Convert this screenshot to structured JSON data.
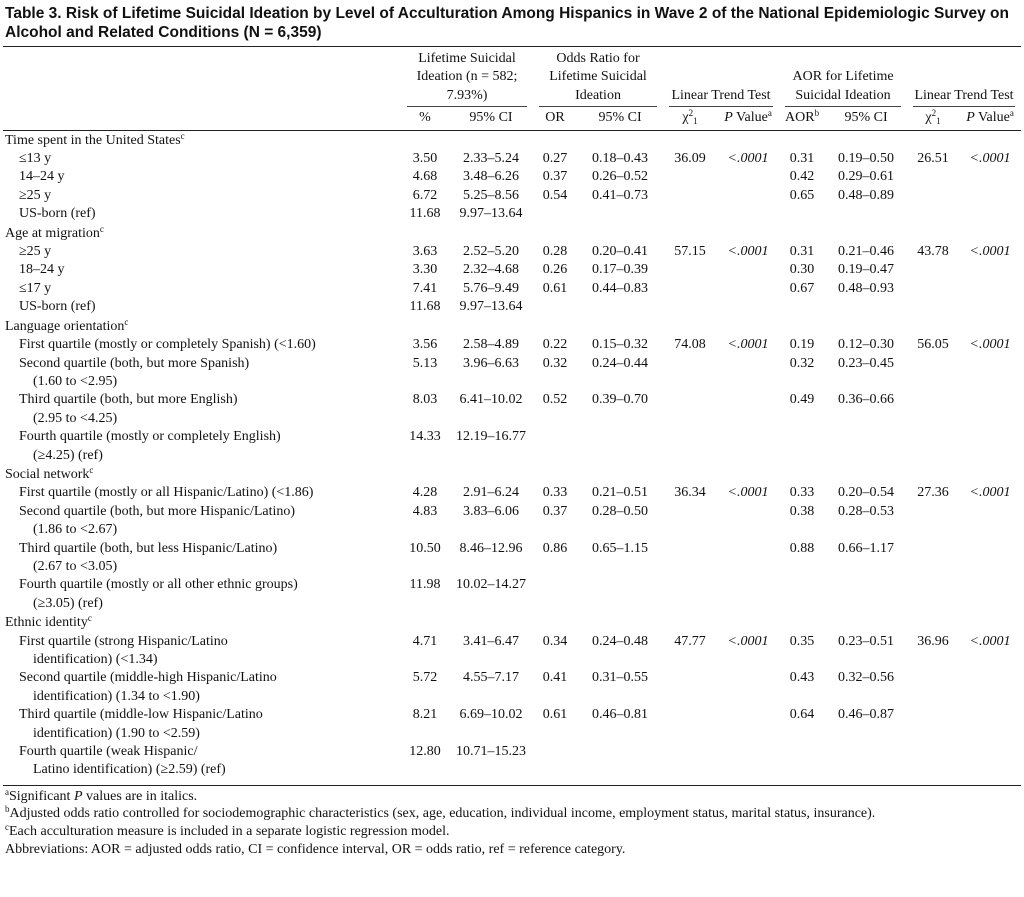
{
  "title": "Table 3. Risk of Lifetime Suicidal Ideation by Level of Acculturation Among Hispanics in Wave 2 of the National Epidemiologic Survey on Alcohol and Related Conditions (N = 6,359)",
  "header": {
    "groups": [
      "Lifetime Suicidal Ideation (n = 582; 7.93%)",
      "Odds Ratio for Lifetime Suicidal Ideation",
      "Linear Trend Test",
      "AOR for Lifetime Suicidal Ideation",
      "Linear Trend Test"
    ],
    "columns": [
      "%",
      "95% CI",
      "OR",
      "95% CI",
      {
        "text": "χ",
        "sup": "2",
        "sub": "1"
      },
      {
        "italic": "P",
        "after": " Value",
        "sup": "a"
      },
      {
        "text": "AOR",
        "sup": "b"
      },
      "95% CI",
      {
        "text": "χ",
        "sup": "2",
        "sub": "1"
      },
      {
        "italic": "P",
        "after": " Value",
        "sup": "a"
      }
    ]
  },
  "sections": [
    {
      "label": {
        "text": "Time spent in the United States",
        "sup": "c"
      },
      "rows": [
        {
          "label": [
            "≤13 y"
          ],
          "cells": [
            "3.50",
            "2.33–5.24",
            "0.27",
            "0.18–0.43",
            "36.09",
            "<.0001",
            "0.31",
            "0.19–0.50",
            "26.51",
            "<.0001"
          ]
        },
        {
          "label": [
            "14–24 y"
          ],
          "cells": [
            "4.68",
            "3.48–6.26",
            "0.37",
            "0.26–0.52",
            null,
            null,
            "0.42",
            "0.29–0.61",
            null,
            null
          ]
        },
        {
          "label": [
            "≥25 y"
          ],
          "cells": [
            "6.72",
            "5.25–8.56",
            "0.54",
            "0.41–0.73",
            null,
            null,
            "0.65",
            "0.48–0.89",
            null,
            null
          ]
        },
        {
          "label": [
            "US-born (ref)"
          ],
          "cells": [
            "11.68",
            "9.97–13.64",
            null,
            null,
            null,
            null,
            null,
            null,
            null,
            null
          ]
        }
      ]
    },
    {
      "label": {
        "text": "Age at migration",
        "sup": "c"
      },
      "rows": [
        {
          "label": [
            "≥25 y"
          ],
          "cells": [
            "3.63",
            "2.52–5.20",
            "0.28",
            "0.20–0.41",
            "57.15",
            "<.0001",
            "0.31",
            "0.21–0.46",
            "43.78",
            "<.0001"
          ]
        },
        {
          "label": [
            "18–24 y"
          ],
          "cells": [
            "3.30",
            "2.32–4.68",
            "0.26",
            "0.17–0.39",
            null,
            null,
            "0.30",
            "0.19–0.47",
            null,
            null
          ]
        },
        {
          "label": [
            "≤17 y"
          ],
          "cells": [
            "7.41",
            "5.76–9.49",
            "0.61",
            "0.44–0.83",
            null,
            null,
            "0.67",
            "0.48–0.93",
            null,
            null
          ]
        },
        {
          "label": [
            "US-born (ref)"
          ],
          "cells": [
            "11.68",
            "9.97–13.64",
            null,
            null,
            null,
            null,
            null,
            null,
            null,
            null
          ]
        }
      ]
    },
    {
      "label": {
        "text": "Language orientation",
        "sup": "c"
      },
      "rows": [
        {
          "label": [
            "First quartile (mostly or completely Spanish) (<1.60)"
          ],
          "cells": [
            "3.56",
            "2.58–4.89",
            "0.22",
            "0.15–0.32",
            "74.08",
            "<.0001",
            "0.19",
            "0.12–0.30",
            "56.05",
            "<.0001"
          ]
        },
        {
          "label": [
            "Second quartile (both, but more Spanish)",
            "(1.60 to <2.95)"
          ],
          "cells": [
            "5.13",
            "3.96–6.63",
            "0.32",
            "0.24–0.44",
            null,
            null,
            "0.32",
            "0.23–0.45",
            null,
            null
          ]
        },
        {
          "label": [
            "Third quartile (both, but more English)",
            "(2.95 to <4.25)"
          ],
          "cells": [
            "8.03",
            "6.41–10.02",
            "0.52",
            "0.39–0.70",
            null,
            null,
            "0.49",
            "0.36–0.66",
            null,
            null
          ]
        },
        {
          "label": [
            "Fourth quartile (mostly or completely English)",
            "(≥4.25) (ref)"
          ],
          "cells": [
            "14.33",
            "12.19–16.77",
            null,
            null,
            null,
            null,
            null,
            null,
            null,
            null
          ]
        }
      ]
    },
    {
      "label": {
        "text": "Social network",
        "sup": "c"
      },
      "rows": [
        {
          "label": [
            "First quartile (mostly or all Hispanic/Latino) (<1.86)"
          ],
          "cells": [
            "4.28",
            "2.91–6.24",
            "0.33",
            "0.21–0.51",
            "36.34",
            "<.0001",
            "0.33",
            "0.20–0.54",
            "27.36",
            "<.0001"
          ]
        },
        {
          "label": [
            "Second quartile (both, but more Hispanic/Latino)",
            "(1.86 to <2.67)"
          ],
          "cells": [
            "4.83",
            "3.83–6.06",
            "0.37",
            "0.28–0.50",
            null,
            null,
            "0.38",
            "0.28–0.53",
            null,
            null
          ]
        },
        {
          "label": [
            "Third quartile (both, but less Hispanic/Latino)",
            "(2.67 to <3.05)"
          ],
          "cells": [
            "10.50",
            "8.46–12.96",
            "0.86",
            "0.65–1.15",
            null,
            null,
            "0.88",
            "0.66–1.17",
            null,
            null
          ]
        },
        {
          "label": [
            "Fourth quartile (mostly or all other ethnic groups)",
            "(≥3.05) (ref)"
          ],
          "cells": [
            "11.98",
            "10.02–14.27",
            null,
            null,
            null,
            null,
            null,
            null,
            null,
            null
          ]
        }
      ]
    },
    {
      "label": {
        "text": "Ethnic identity",
        "sup": "c"
      },
      "rows": [
        {
          "label": [
            "First quartile (strong Hispanic/Latino",
            "identification) (<1.34)"
          ],
          "cells": [
            "4.71",
            "3.41–6.47",
            "0.34",
            "0.24–0.48",
            "47.77",
            "<.0001",
            "0.35",
            "0.23–0.51",
            "36.96",
            "<.0001"
          ]
        },
        {
          "label": [
            "Second quartile (middle-high Hispanic/Latino",
            "identification) (1.34 to <1.90)"
          ],
          "cells": [
            "5.72",
            "4.55–7.17",
            "0.41",
            "0.31–0.55",
            null,
            null,
            "0.43",
            "0.32–0.56",
            null,
            null
          ]
        },
        {
          "label": [
            "Third quartile (middle-low Hispanic/Latino",
            "identification) (1.90 to <2.59)"
          ],
          "cells": [
            "8.21",
            "6.69–10.02",
            "0.61",
            "0.46–0.81",
            null,
            null,
            "0.64",
            "0.46–0.87",
            null,
            null
          ]
        },
        {
          "label": [
            "Fourth quartile (weak Hispanic/",
            "Latino identification) (≥2.59) (ref)"
          ],
          "cells": [
            "12.80",
            "10.71–15.23",
            null,
            null,
            null,
            null,
            null,
            null,
            null,
            null
          ]
        }
      ]
    }
  ],
  "footnotes": [
    {
      "mark": "a",
      "text": "Significant ",
      "italic": "P",
      "after": " values are in italics."
    },
    {
      "mark": "b",
      "text": "Adjusted odds ratio controlled for sociodemographic characteristics (sex, age, education, individual income, employment status, marital status, insurance)."
    },
    {
      "mark": "c",
      "text": "Each acculturation measure is included in a separate logistic regression model."
    },
    {
      "text": "Abbreviations: AOR = adjusted odds ratio, CI = confidence interval, OR = odds ratio, ref = reference category."
    }
  ]
}
